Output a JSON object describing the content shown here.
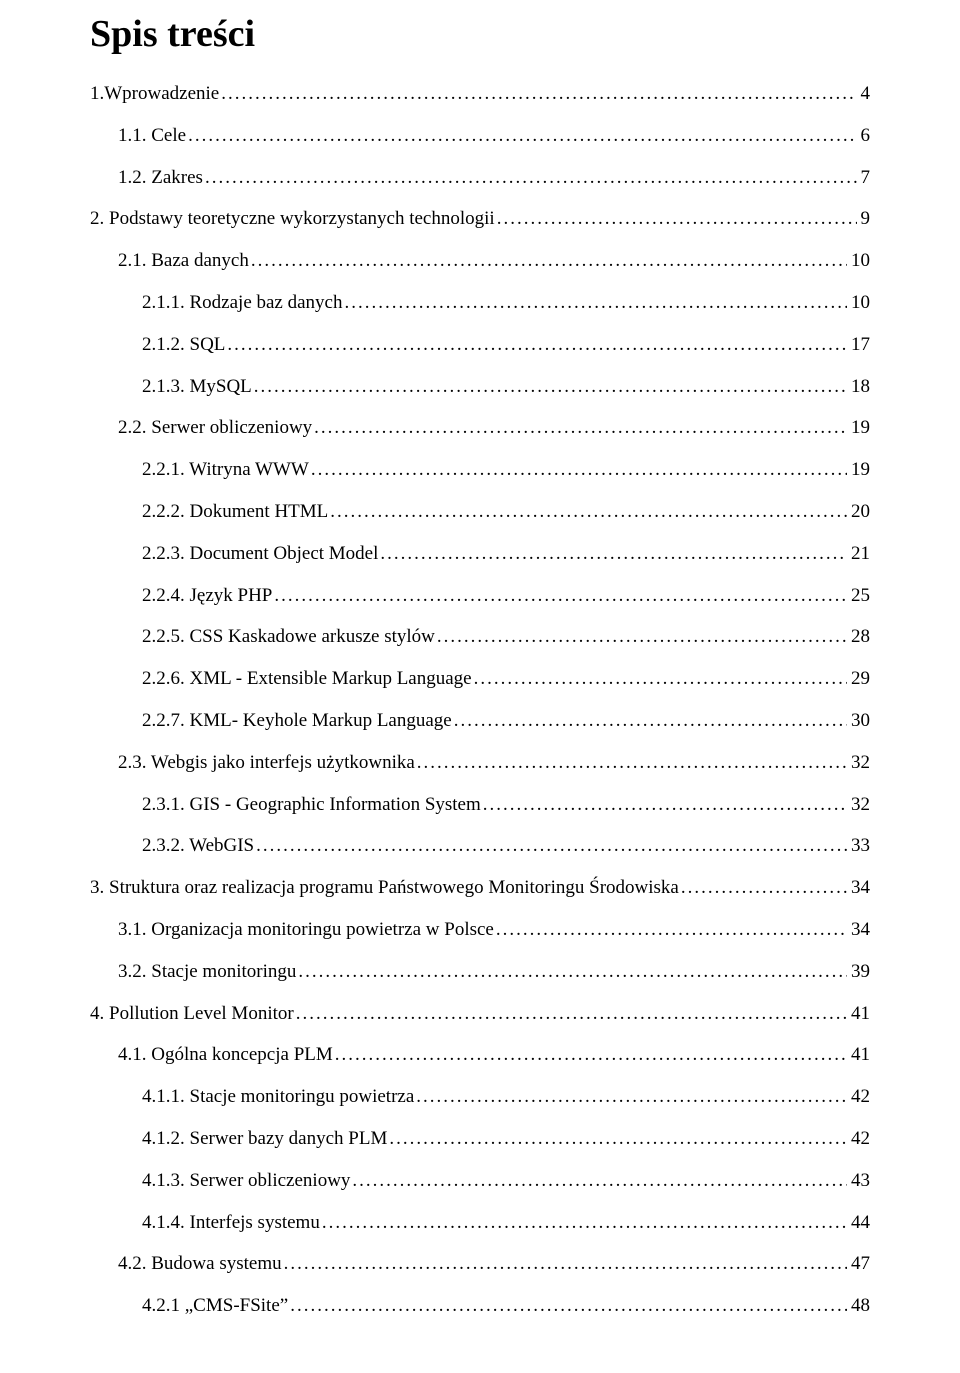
{
  "title": "Spis treści",
  "entries": [
    {
      "label": "1.Wprowadzenie",
      "page": "4",
      "level": 0
    },
    {
      "label": "1.1. Cele",
      "page": "6",
      "level": 1
    },
    {
      "label": "1.2. Zakres",
      "page": "7",
      "level": 1
    },
    {
      "label": "2. Podstawy teoretyczne wykorzystanych technologii",
      "page": "9",
      "level": 0
    },
    {
      "label": "2.1. Baza danych",
      "page": "10",
      "level": 1
    },
    {
      "label": "2.1.1. Rodzaje baz danych",
      "page": "10",
      "level": 2
    },
    {
      "label": "2.1.2. SQL",
      "page": "17",
      "level": 2
    },
    {
      "label": "2.1.3. MySQL",
      "page": "18",
      "level": 2
    },
    {
      "label": "2.2. Serwer obliczeniowy",
      "page": "19",
      "level": 1
    },
    {
      "label": "2.2.1. Witryna WWW",
      "page": "19",
      "level": 2
    },
    {
      "label": "2.2.2. Dokument HTML",
      "page": "20",
      "level": 2
    },
    {
      "label": "2.2.3. Document Object Model",
      "page": "21",
      "level": 2
    },
    {
      "label": "2.2.4. Język PHP",
      "page": "25",
      "level": 2
    },
    {
      "label": "2.2.5. CSS Kaskadowe arkusze stylów",
      "page": "28",
      "level": 2
    },
    {
      "label": "2.2.6. XML - Extensible Markup Language",
      "page": "29",
      "level": 2
    },
    {
      "label": "2.2.7. KML-  Keyhole Markup Language",
      "page": "30",
      "level": 2
    },
    {
      "label": "2.3. Webgis jako  interfejs użytkownika",
      "page": "32",
      "level": 1
    },
    {
      "label": "2.3.1. GIS - Geographic Information System",
      "page": "32",
      "level": 2
    },
    {
      "label": "2.3.2. WebGIS",
      "page": "33",
      "level": 2
    },
    {
      "label": "3. Struktura oraz realizacja programu Państwowego Monitoringu Środowiska",
      "page": "34",
      "level": 0
    },
    {
      "label": "3.1. Organizacja monitoringu powietrza w Polsce",
      "page": "34",
      "level": 1
    },
    {
      "label": "3.2. Stacje monitoringu",
      "page": "39",
      "level": 1
    },
    {
      "label": "4. Pollution Level Monitor",
      "page": "41",
      "level": 0
    },
    {
      "label": "4.1. Ogólna koncepcja PLM",
      "page": "41",
      "level": 1
    },
    {
      "label": "4.1.1. Stacje monitoringu powietrza",
      "page": "42",
      "level": 2
    },
    {
      "label": "4.1.2. Serwer bazy danych PLM",
      "page": "42",
      "level": 2
    },
    {
      "label": "4.1.3. Serwer obliczeniowy",
      "page": "43",
      "level": 2
    },
    {
      "label": "4.1.4. Interfejs systemu",
      "page": "44",
      "level": 2
    },
    {
      "label": "4.2. Budowa systemu",
      "page": "47",
      "level": 1
    },
    {
      "label": "4.2.1 „CMS-FSite”",
      "page": "48",
      "level": 2
    }
  ]
}
